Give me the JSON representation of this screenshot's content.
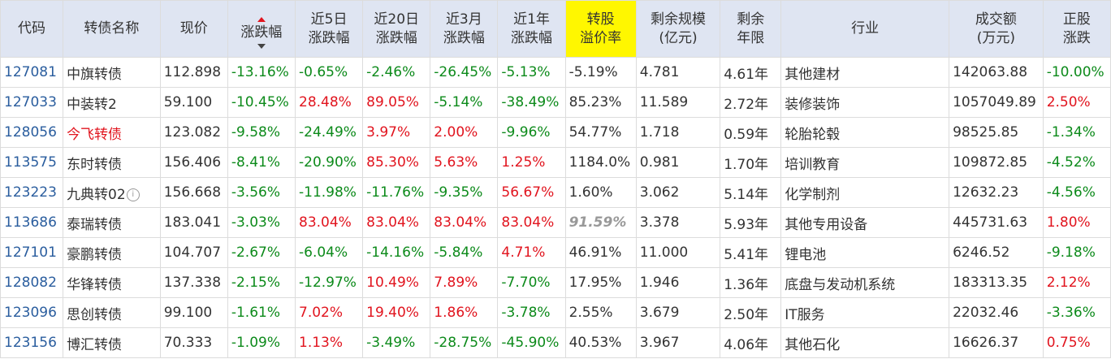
{
  "colors": {
    "red": "#e1141e",
    "green": "#0c8a1a",
    "header_bg": "#dfe5f2",
    "highlight": "#fff700",
    "code": "#2a5d9e"
  },
  "headers": [
    {
      "line1": "代码",
      "line2": ""
    },
    {
      "line1": "转债名称",
      "line2": ""
    },
    {
      "line1": "现价",
      "line2": ""
    },
    {
      "line1": "涨跌幅",
      "line2": ""
    },
    {
      "line1": "近5日",
      "line2": "涨跌幅"
    },
    {
      "line1": "近20日",
      "line2": "涨跌幅"
    },
    {
      "line1": "近3月",
      "line2": "涨跌幅"
    },
    {
      "line1": "近1年",
      "line2": "涨跌幅"
    },
    {
      "line1": "转股",
      "line2": "溢价率"
    },
    {
      "line1": "剩余规模",
      "line2": "(亿元)"
    },
    {
      "line1": "剩余",
      "line2": "年限"
    },
    {
      "line1": "行业",
      "line2": ""
    },
    {
      "line1": "成交额",
      "line2": "(万元)"
    },
    {
      "line1": "正股",
      "line2": "涨跌"
    }
  ],
  "rows": [
    {
      "code": "127081",
      "name": "中旗转债",
      "price": "112.898",
      "chg": "-13.16%",
      "d5": "-0.65%",
      "d20": "-2.46%",
      "m3": "-26.45%",
      "y1": "-5.13%",
      "premium": "-5.19%",
      "scale": "4.781",
      "years": "4.61年",
      "industry": "其他建材",
      "turnover": "142063.88",
      "stock": "-10.00%"
    },
    {
      "code": "127033",
      "name": "中装转2",
      "price": "59.100",
      "chg": "-10.45%",
      "d5": "28.48%",
      "d20": "89.05%",
      "m3": "-5.14%",
      "y1": "-38.49%",
      "premium": "85.23%",
      "scale": "11.589",
      "years": "2.72年",
      "industry": "装修装饰",
      "turnover": "1057049.89",
      "stock": "2.50%"
    },
    {
      "code": "128056",
      "name": "今飞转债",
      "price": "123.082",
      "chg": "-9.58%",
      "d5": "-24.49%",
      "d20": "3.97%",
      "m3": "2.00%",
      "y1": "-9.96%",
      "premium": "54.77%",
      "scale": "1.718",
      "years": "0.59年",
      "industry": "轮胎轮毂",
      "turnover": "98525.85",
      "stock": "-1.34%"
    },
    {
      "code": "113575",
      "name": "东时转债",
      "price": "156.406",
      "chg": "-8.41%",
      "d5": "-20.90%",
      "d20": "85.30%",
      "m3": "5.63%",
      "y1": "1.25%",
      "premium": "1184.0%",
      "scale": "0.981",
      "years": "1.70年",
      "industry": "培训教育",
      "turnover": "109872.85",
      "stock": "-4.52%"
    },
    {
      "code": "123223",
      "name": "九典转02",
      "price": "156.668",
      "chg": "-3.56%",
      "d5": "-11.98%",
      "d20": "-11.76%",
      "m3": "-9.35%",
      "y1": "56.67%",
      "premium": "1.60%",
      "scale": "3.062",
      "years": "5.14年",
      "industry": "化学制剂",
      "turnover": "12632.23",
      "stock": "-4.56%"
    },
    {
      "code": "113686",
      "name": "泰瑞转债",
      "price": "183.041",
      "chg": "-3.03%",
      "d5": "83.04%",
      "d20": "83.04%",
      "m3": "83.04%",
      "y1": "83.04%",
      "premium": "91.59%",
      "scale": "3.378",
      "years": "5.93年",
      "industry": "其他专用设备",
      "turnover": "445731.63",
      "stock": "1.80%"
    },
    {
      "code": "127101",
      "name": "豪鹏转债",
      "price": "104.707",
      "chg": "-2.67%",
      "d5": "-6.04%",
      "d20": "-14.16%",
      "m3": "-5.84%",
      "y1": "4.71%",
      "premium": "46.91%",
      "scale": "11.000",
      "years": "5.41年",
      "industry": "锂电池",
      "turnover": "6246.52",
      "stock": "-9.18%"
    },
    {
      "code": "128082",
      "name": "华锋转债",
      "price": "137.338",
      "chg": "-2.15%",
      "d5": "-12.97%",
      "d20": "10.49%",
      "m3": "7.89%",
      "y1": "-7.70%",
      "premium": "17.95%",
      "scale": "1.946",
      "years": "1.36年",
      "industry": "底盘与发动机系统",
      "turnover": "183313.35",
      "stock": "2.12%"
    },
    {
      "code": "123096",
      "name": "思创转债",
      "price": "99.100",
      "chg": "-1.61%",
      "d5": "7.02%",
      "d20": "19.40%",
      "m3": "1.86%",
      "y1": "-3.78%",
      "premium": "2.55%",
      "scale": "3.679",
      "years": "2.50年",
      "industry": "IT服务",
      "turnover": "22032.46",
      "stock": "-3.36%"
    },
    {
      "code": "123156",
      "name": "博汇转债",
      "price": "70.333",
      "chg": "-1.09%",
      "d5": "1.13%",
      "d20": "-3.49%",
      "m3": "-28.75%",
      "y1": "-45.90%",
      "premium": "40.53%",
      "scale": "3.967",
      "years": "4.06年",
      "industry": "其他石化",
      "turnover": "16626.37",
      "stock": "0.75%"
    }
  ]
}
